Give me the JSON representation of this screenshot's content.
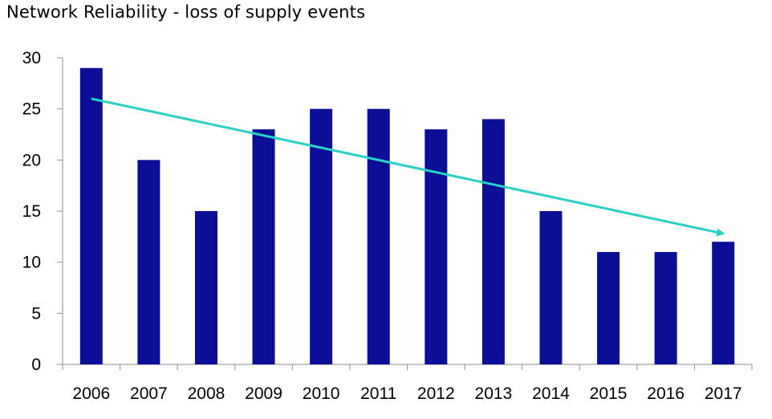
{
  "chart_data": {
    "type": "bar",
    "title": "Network Reliability - loss of supply events",
    "categories": [
      "2006",
      "2007",
      "2008",
      "2009",
      "2010",
      "2011",
      "2012",
      "2013",
      "2014",
      "2015",
      "2016",
      "2017"
    ],
    "values": [
      29,
      20,
      15,
      23,
      25,
      25,
      23,
      24,
      15,
      11,
      11,
      12
    ],
    "ylim": [
      0,
      30
    ],
    "yticks": [
      "0",
      "5",
      "10",
      "15",
      "20",
      "25",
      "30"
    ],
    "xlabel": "",
    "ylabel": "",
    "grid": false,
    "legend": "none",
    "trend_arrow": {
      "from": {
        "x": "2006",
        "y": 26
      },
      "to": {
        "x": "2017",
        "y": 12.8
      }
    },
    "colors": {
      "bar": "#0a0f96",
      "trend": "#2ccfc6",
      "axis": "#8c8c8c"
    }
  }
}
